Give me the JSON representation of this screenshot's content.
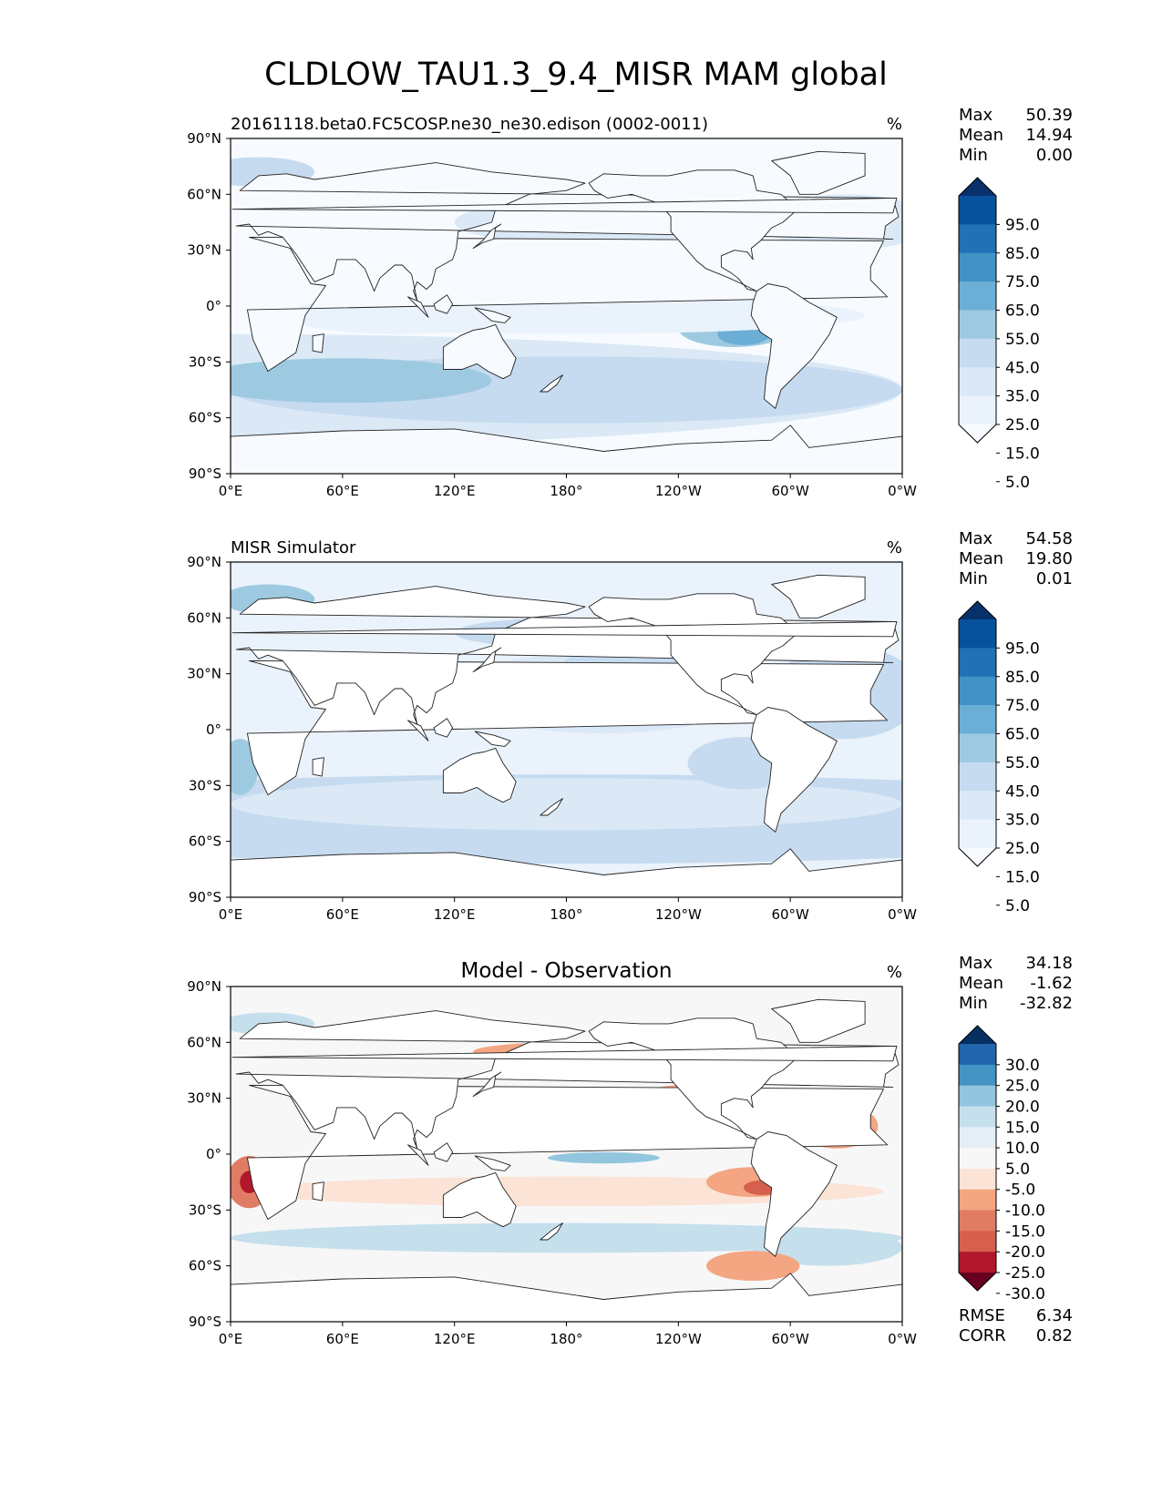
{
  "title": "CLDLOW_TAU1.3_9.4_MISR MAM global",
  "axes": {
    "x_tick_labels": [
      "0°E",
      "60°E",
      "120°E",
      "180°",
      "120°W",
      "60°W",
      "0°W"
    ],
    "y_tick_labels": [
      "90°N",
      "60°N",
      "30°N",
      "0°",
      "30°S",
      "60°S",
      "90°S"
    ]
  },
  "panels": [
    {
      "title": "20161118.beta0.FC5COSP.ne30_ne30.edison (0002-0011)",
      "units": "%",
      "stats": [
        {
          "label": "Max",
          "value": "50.39"
        },
        {
          "label": "Mean",
          "value": "14.94"
        },
        {
          "label": "Min",
          "value": "0.00"
        }
      ],
      "colorbar": {
        "tick_labels": [
          "95.0",
          "85.0",
          "75.0",
          "65.0",
          "55.0",
          "45.0",
          "35.0",
          "25.0",
          "15.0",
          "5.0"
        ],
        "colors": [
          "#08306b",
          "#08519c",
          "#2171b5",
          "#4292c6",
          "#6baed6",
          "#9ecae1",
          "#c6dbef",
          "#dbe9f6",
          "#eaf2fb",
          "#f7fbff"
        ]
      }
    },
    {
      "title": "MISR Simulator",
      "units": "%",
      "stats": [
        {
          "label": "Max",
          "value": "54.58"
        },
        {
          "label": "Mean",
          "value": "19.80"
        },
        {
          "label": "Min",
          "value": "0.01"
        }
      ],
      "colorbar": {
        "tick_labels": [
          "95.0",
          "85.0",
          "75.0",
          "65.0",
          "55.0",
          "45.0",
          "35.0",
          "25.0",
          "15.0",
          "5.0"
        ],
        "colors": [
          "#08306b",
          "#08519c",
          "#2171b5",
          "#4292c6",
          "#6baed6",
          "#9ecae1",
          "#c6dbef",
          "#dbe9f6",
          "#eaf2fb",
          "#f7fbff"
        ]
      }
    },
    {
      "title": "Model - Observation",
      "units": "%",
      "stats": [
        {
          "label": "Max",
          "value": "34.18"
        },
        {
          "label": "Mean",
          "value": "-1.62"
        },
        {
          "label": "Min",
          "value": "-32.82"
        }
      ],
      "extra_stats": [
        {
          "label": "RMSE",
          "value": "6.34"
        },
        {
          "label": "CORR",
          "value": "0.82"
        }
      ],
      "colorbar": {
        "tick_labels": [
          "30.0",
          "25.0",
          "20.0",
          "15.0",
          "10.0",
          "5.0",
          "-5.0",
          "-10.0",
          "-15.0",
          "-20.0",
          "-25.0",
          "-30.0"
        ],
        "colors": [
          "#053061",
          "#2166ac",
          "#4393c3",
          "#92c5de",
          "#c5dfec",
          "#e4eef5",
          "#f7f7f7",
          "#fbe3d6",
          "#f4a582",
          "#e07b64",
          "#d6604d",
          "#b2182b",
          "#67001f"
        ]
      }
    }
  ],
  "chart_data": [
    {
      "type": "heatmap",
      "title": "20161118.beta0.FC5COSP.ne30_ne30.edison (0002-0011)",
      "units": "%",
      "xlim": [
        0,
        360
      ],
      "ylim": [
        -90,
        90
      ],
      "x_ticks": [
        0,
        60,
        120,
        180,
        240,
        300,
        360
      ],
      "y_ticks": [
        90,
        60,
        30,
        0,
        -30,
        -60,
        -90
      ],
      "levels": [
        5,
        15,
        25,
        35,
        45,
        55,
        65,
        75,
        85,
        95
      ],
      "colormap": "Blues",
      "stats": {
        "max": 50.39,
        "mean": 14.94,
        "min": 0.0
      }
    },
    {
      "type": "heatmap",
      "title": "MISR Simulator",
      "units": "%",
      "xlim": [
        0,
        360
      ],
      "ylim": [
        -90,
        90
      ],
      "x_ticks": [
        0,
        60,
        120,
        180,
        240,
        300,
        360
      ],
      "y_ticks": [
        90,
        60,
        30,
        0,
        -30,
        -60,
        -90
      ],
      "levels": [
        5,
        15,
        25,
        35,
        45,
        55,
        65,
        75,
        85,
        95
      ],
      "colormap": "Blues",
      "stats": {
        "max": 54.58,
        "mean": 19.8,
        "min": 0.01
      }
    },
    {
      "type": "heatmap",
      "title": "Model - Observation",
      "units": "%",
      "xlim": [
        0,
        360
      ],
      "ylim": [
        -90,
        90
      ],
      "x_ticks": [
        0,
        60,
        120,
        180,
        240,
        300,
        360
      ],
      "y_ticks": [
        90,
        60,
        30,
        0,
        -30,
        -60,
        -90
      ],
      "levels": [
        -30,
        -25,
        -20,
        -15,
        -10,
        -5,
        5,
        10,
        15,
        20,
        25,
        30
      ],
      "colormap": "RdBu",
      "stats": {
        "max": 34.18,
        "mean": -1.62,
        "min": -32.82,
        "rmse": 6.34,
        "corr": 0.82
      }
    }
  ]
}
